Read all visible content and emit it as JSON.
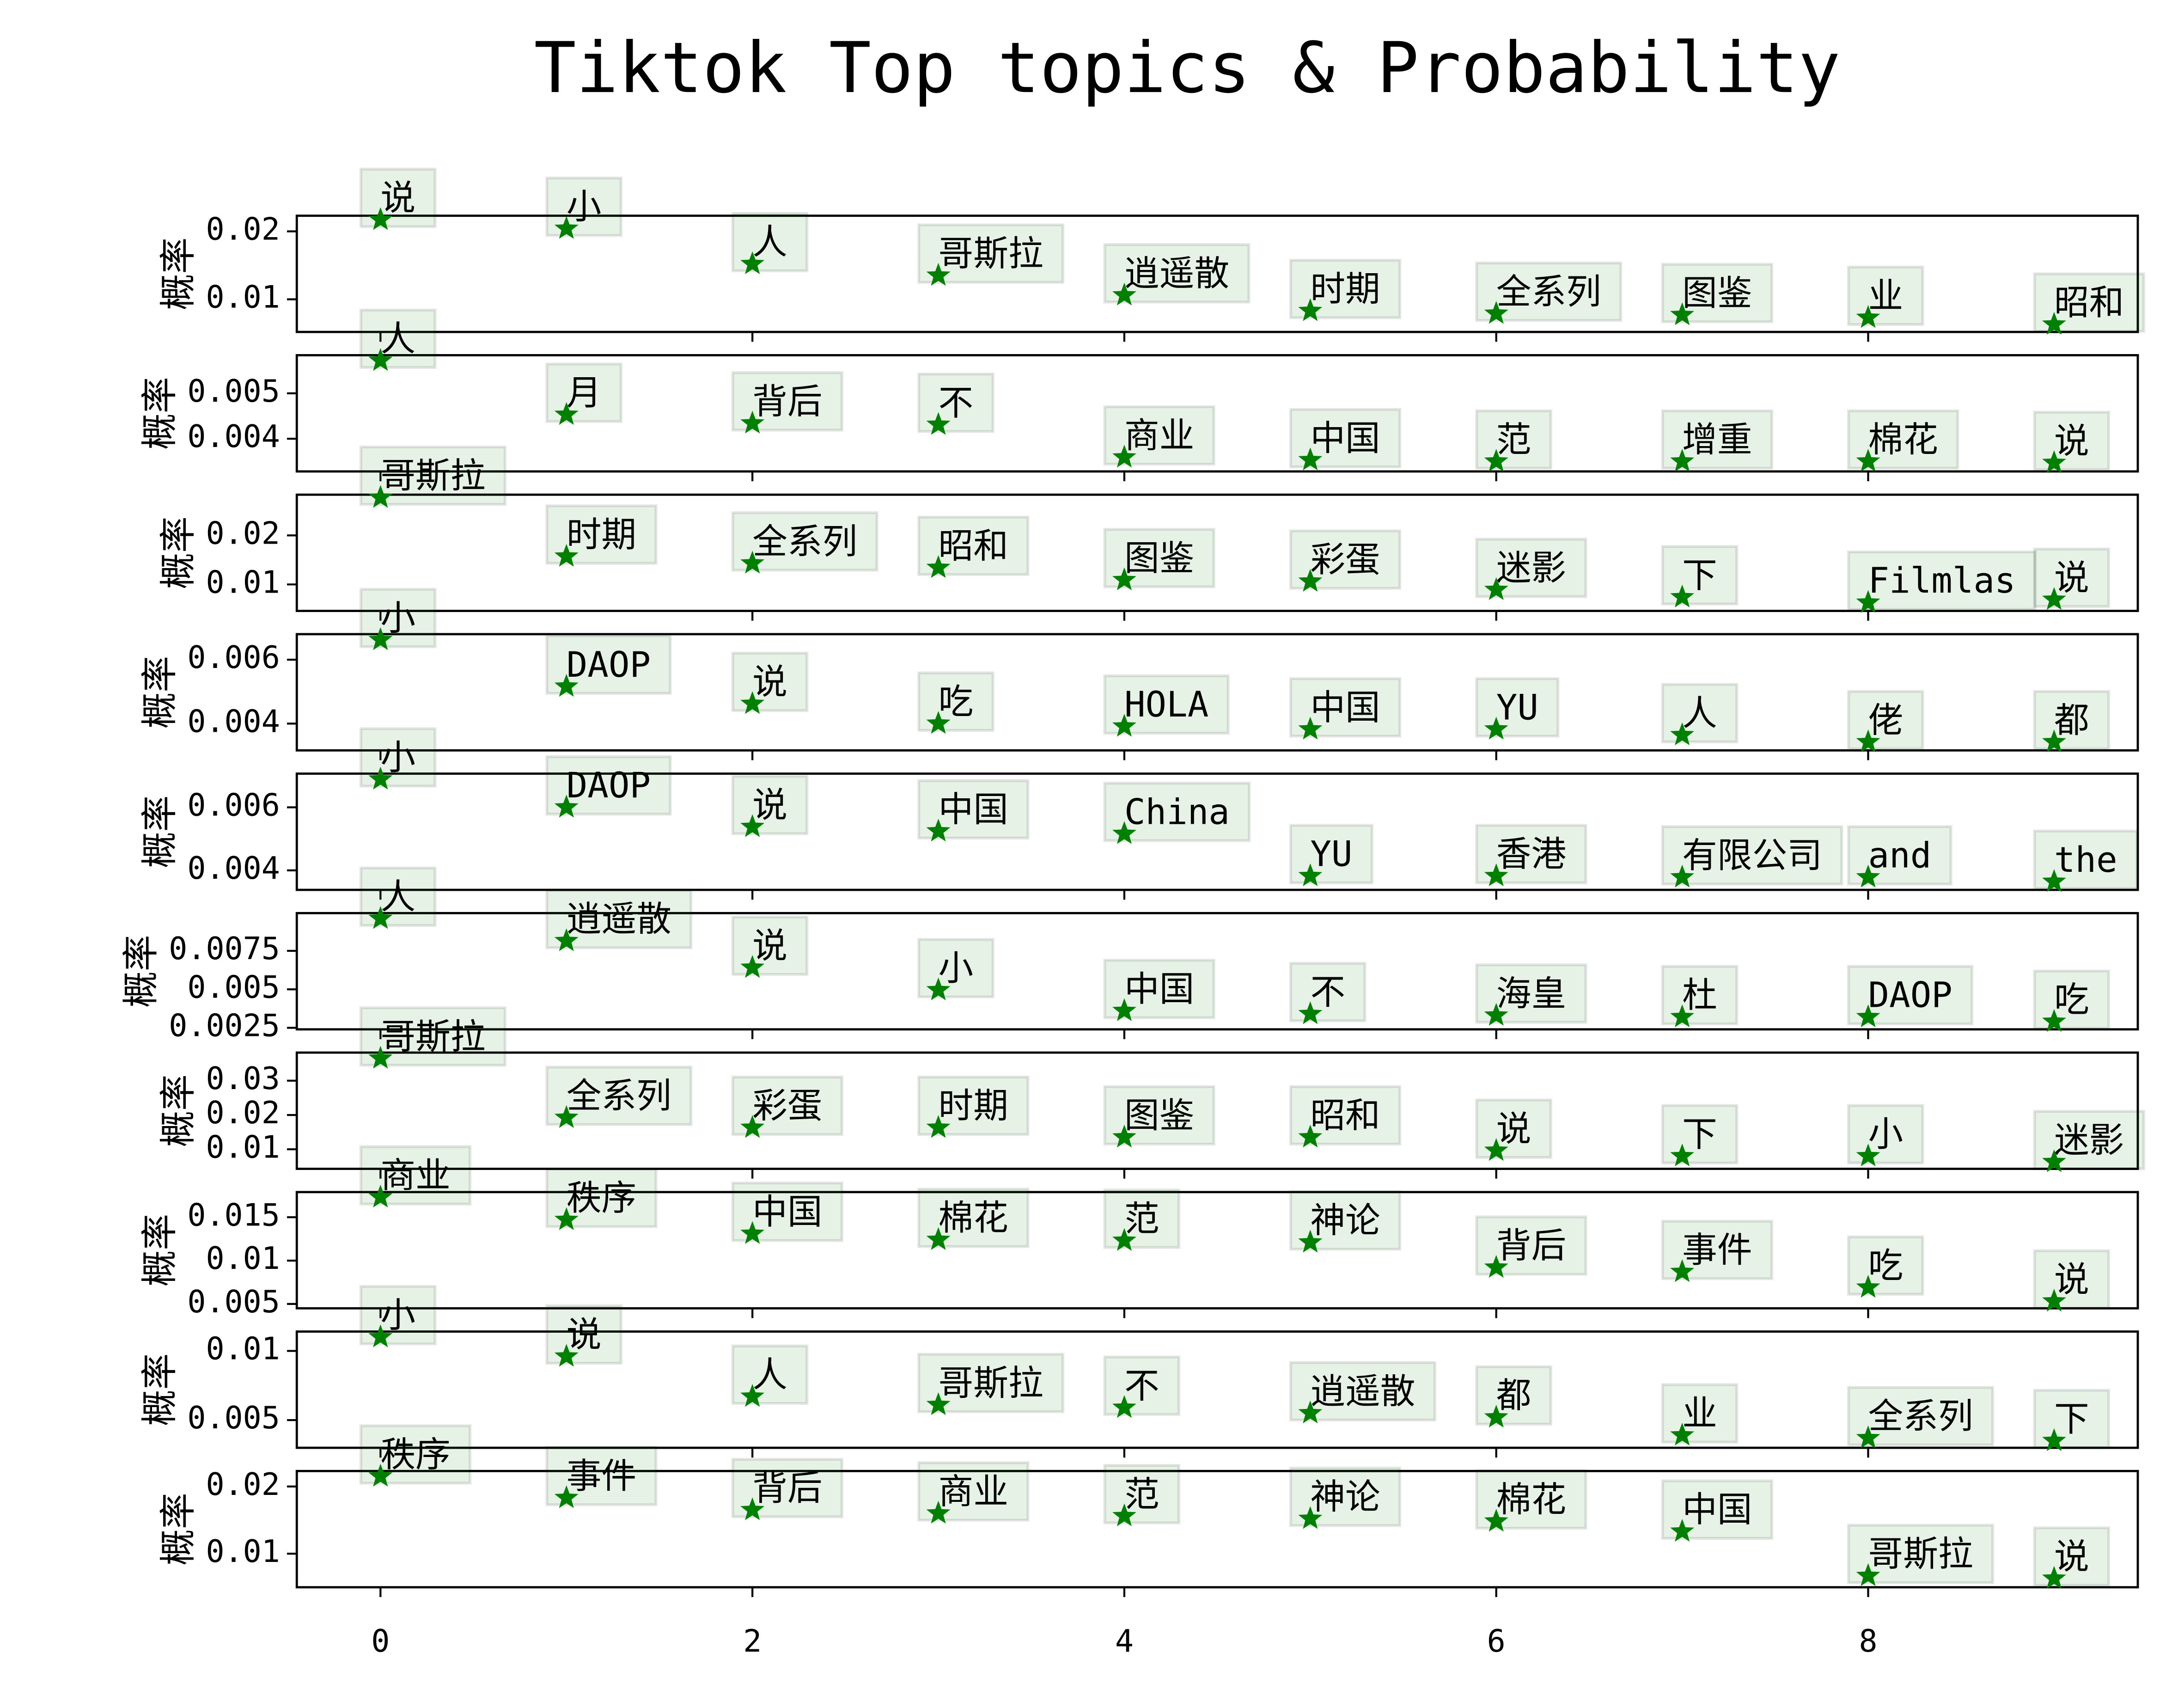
{
  "title": "Tiktok Top topics & Probability",
  "chart_data": [
    {
      "type": "scatter",
      "ylabel": "概率",
      "color": "green",
      "marker": "star",
      "x": [
        0,
        1,
        2,
        3,
        4,
        5,
        6,
        7,
        8,
        9
      ],
      "xlim": [
        -0.45,
        9.45
      ],
      "xticks": [
        0,
        2,
        4,
        6,
        8
      ],
      "values": [
        0.0217,
        0.0204,
        0.0152,
        0.0135,
        0.0106,
        0.0083,
        0.0079,
        0.0077,
        0.0073,
        0.0063
      ],
      "labels": [
        "说",
        "小",
        "人",
        "哥斯拉",
        "逍遥散",
        "时期",
        "全系列",
        "图鉴",
        "业",
        "昭和"
      ],
      "ylim": [
        0.0052,
        0.0223
      ],
      "yticks": [
        0.01,
        0.02
      ]
    },
    {
      "type": "scatter",
      "ylabel": "概率",
      "color": "green",
      "marker": "star",
      "x": [
        0,
        1,
        2,
        3,
        4,
        5,
        6,
        7,
        8,
        9
      ],
      "xlim": [
        -0.45,
        9.45
      ],
      "xticks": [
        0,
        2,
        4,
        6,
        8
      ],
      "values": [
        0.00572,
        0.00453,
        0.00434,
        0.00431,
        0.00359,
        0.00353,
        0.0035,
        0.0035,
        0.0035,
        0.00347
      ],
      "labels": [
        "人",
        "月",
        "背后",
        "不",
        "商业",
        "中国",
        "范",
        "增重",
        "棉花",
        "说"
      ],
      "ylim": [
        0.00328,
        0.00584
      ],
      "yticks": [
        0.004,
        0.005
      ]
    },
    {
      "type": "scatter",
      "ylabel": "概率",
      "color": "green",
      "marker": "star",
      "x": [
        0,
        1,
        2,
        3,
        4,
        5,
        6,
        7,
        8,
        9
      ],
      "xlim": [
        -0.45,
        9.45
      ],
      "xticks": [
        0,
        2,
        4,
        6,
        8
      ],
      "values": [
        0.0277,
        0.0157,
        0.0143,
        0.0134,
        0.0109,
        0.0106,
        0.0089,
        0.0074,
        0.0063,
        0.0069
      ],
      "labels": [
        "哥斯拉",
        "时期",
        "全系列",
        "昭和",
        "图鉴",
        "彩蛋",
        "迷影",
        "下",
        "Filmlas",
        "说"
      ],
      "ylim": [
        0.0046,
        0.0283
      ],
      "yticks": [
        0.01,
        0.02
      ]
    },
    {
      "type": "scatter",
      "ylabel": "概率",
      "color": "green",
      "marker": "star",
      "x": [
        0,
        1,
        2,
        3,
        4,
        5,
        6,
        7,
        8,
        9
      ],
      "xlim": [
        -0.45,
        9.45
      ],
      "xticks": [
        0,
        2,
        4,
        6,
        8
      ],
      "values": [
        0.00662,
        0.00516,
        0.00462,
        0.004,
        0.00391,
        0.00382,
        0.00382,
        0.00364,
        0.00342,
        0.00342
      ],
      "labels": [
        "小",
        "DAOP",
        "说",
        "吃",
        "HOLA",
        "中国",
        "YU",
        "人",
        "佬",
        "都"
      ],
      "ylim": [
        0.00316,
        0.0068
      ],
      "yticks": [
        0.004,
        0.006
      ]
    },
    {
      "type": "scatter",
      "ylabel": "概率",
      "color": "green",
      "marker": "star",
      "x": [
        0,
        1,
        2,
        3,
        4,
        5,
        6,
        7,
        8,
        9
      ],
      "xlim": [
        -0.45,
        9.45
      ],
      "xticks": [
        0,
        2,
        4,
        6,
        8
      ],
      "values": [
        0.00689,
        0.006,
        0.00538,
        0.00524,
        0.00516,
        0.00382,
        0.00382,
        0.00378,
        0.00378,
        0.00364
      ],
      "labels": [
        "小",
        "DAOP",
        "说",
        "中国",
        "China",
        "YU",
        "香港",
        "有限公司",
        "and",
        "the"
      ],
      "ylim": [
        0.00338,
        0.00707
      ],
      "yticks": [
        0.004,
        0.006
      ]
    },
    {
      "type": "scatter",
      "ylabel": "概率",
      "color": "green",
      "marker": "star",
      "x": [
        0,
        1,
        2,
        3,
        4,
        5,
        6,
        7,
        8,
        9
      ],
      "xlim": [
        -0.45,
        9.45
      ],
      "xticks": [
        0,
        2,
        4,
        6,
        8
      ],
      "values": [
        0.00959,
        0.00814,
        0.00641,
        0.00495,
        0.0036,
        0.0034,
        0.0033,
        0.0032,
        0.0032,
        0.0029
      ],
      "labels": [
        "人",
        "逍遥散",
        "说",
        "小",
        "中国",
        "不",
        "海皇",
        "杜",
        "DAOP",
        "吃"
      ],
      "ylim": [
        0.0024,
        0.00995
      ],
      "yticks": [
        0.0025,
        0.005,
        0.0075
      ]
    },
    {
      "type": "scatter",
      "ylabel": "概率",
      "color": "green",
      "marker": "star",
      "x": [
        0,
        1,
        2,
        3,
        4,
        5,
        6,
        7,
        8,
        9
      ],
      "xlim": [
        -0.45,
        9.45
      ],
      "xticks": [
        0,
        2,
        4,
        6,
        8
      ],
      "values": [
        0.0365,
        0.0192,
        0.0163,
        0.0163,
        0.0135,
        0.0135,
        0.0096,
        0.008,
        0.008,
        0.0063
      ],
      "labels": [
        "哥斯拉",
        "全系列",
        "彩蛋",
        "时期",
        "图鉴",
        "昭和",
        "说",
        "下",
        "小",
        "迷影"
      ],
      "ylim": [
        0.0043,
        0.0382
      ],
      "yticks": [
        0.01,
        0.02,
        0.03
      ]
    },
    {
      "type": "scatter",
      "ylabel": "概率",
      "color": "green",
      "marker": "star",
      "x": [
        0,
        1,
        2,
        3,
        4,
        5,
        6,
        7,
        8,
        9
      ],
      "xlim": [
        -0.45,
        9.45
      ],
      "xticks": [
        0,
        2,
        4,
        6,
        8
      ],
      "values": [
        0.0173,
        0.0147,
        0.0131,
        0.0124,
        0.0123,
        0.0121,
        0.0092,
        0.0087,
        0.0069,
        0.0053
      ],
      "labels": [
        "商业",
        "秩序",
        "中国",
        "棉花",
        "范",
        "神论",
        "背后",
        "事件",
        "吃",
        "说"
      ],
      "ylim": [
        0.0045,
        0.0179
      ],
      "yticks": [
        0.005,
        0.01,
        0.015
      ]
    },
    {
      "type": "scatter",
      "ylabel": "概率",
      "color": "green",
      "marker": "star",
      "x": [
        0,
        1,
        2,
        3,
        4,
        5,
        6,
        7,
        8,
        9
      ],
      "xlim": [
        -0.45,
        9.45
      ],
      "xticks": [
        0,
        2,
        4,
        6,
        8
      ],
      "values": [
        0.011,
        0.0096,
        0.0067,
        0.0061,
        0.0059,
        0.0055,
        0.0052,
        0.0039,
        0.0037,
        0.0035
      ],
      "labels": [
        "小",
        "说",
        "人",
        "哥斯拉",
        "不",
        "逍遥散",
        "都",
        "业",
        "全系列",
        "下"
      ],
      "ylim": [
        0.003,
        0.0114
      ],
      "yticks": [
        0.005,
        0.01
      ]
    },
    {
      "type": "scatter",
      "ylabel": "概率",
      "color": "green",
      "marker": "star",
      "x": [
        0,
        1,
        2,
        3,
        4,
        5,
        6,
        7,
        8,
        9
      ],
      "xlim": [
        -0.45,
        9.45
      ],
      "xticks": [
        0,
        2,
        4,
        6,
        8
      ],
      "values": [
        0.0215,
        0.0183,
        0.0165,
        0.016,
        0.0156,
        0.0152,
        0.0148,
        0.0133,
        0.0067,
        0.0063
      ],
      "labels": [
        "秩序",
        "事件",
        "背后",
        "商业",
        "范",
        "神论",
        "棉花",
        "中国",
        "哥斯拉",
        "说"
      ],
      "ylim": [
        0.005,
        0.0223
      ],
      "yticks": [
        0.01,
        0.02
      ],
      "show_xtick_labels": true
    }
  ]
}
